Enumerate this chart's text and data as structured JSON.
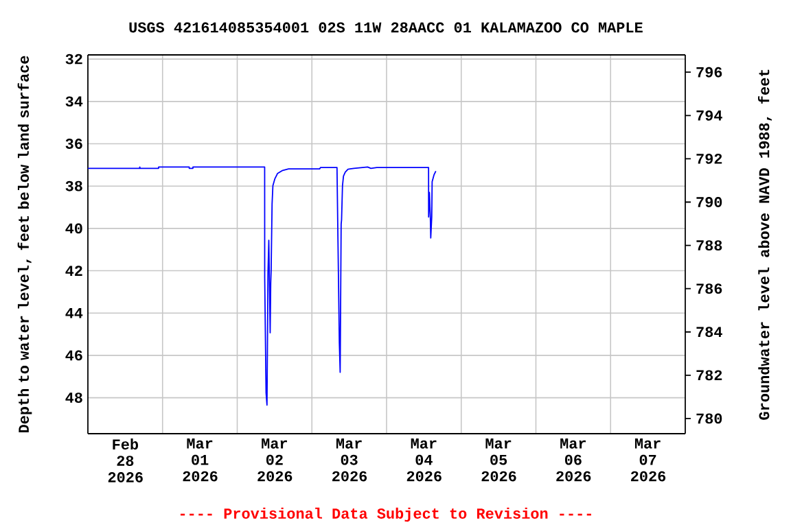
{
  "chart_data": {
    "type": "line",
    "title": "USGS 421614085354001 02S 11W 28AACC 01 KALAMAZOO CO MAPLE",
    "ylabel": "Depth to water level, feet below land surface",
    "y2label": "Groundwater level above NAVD 1988, feet",
    "annotations": [
      "---- Provisional Data Subject to Revision ----"
    ],
    "xlim": [
      "2026-02-28T00:00",
      "2026-03-08T00:00"
    ],
    "xticks": [
      {
        "value": "2026-02-28T12:00",
        "label": "Feb 28 2026"
      },
      {
        "value": "2026-03-01T12:00",
        "label": "Mar 01 2026"
      },
      {
        "value": "2026-03-02T12:00",
        "label": "Mar 02 2026"
      },
      {
        "value": "2026-03-03T12:00",
        "label": "Mar 03 2026"
      },
      {
        "value": "2026-03-04T12:00",
        "label": "Mar 04 2026"
      },
      {
        "value": "2026-03-05T12:00",
        "label": "Mar 05 2026"
      },
      {
        "value": "2026-03-06T12:00",
        "label": "Mar 06 2026"
      },
      {
        "value": "2026-03-07T12:00",
        "label": "Mar 07 2026"
      },
      {
        "value": "2026-03-01T00:00",
        "label": null
      },
      {
        "value": "2026-03-02T00:00",
        "label": null
      },
      {
        "value": "2026-03-03T00:00",
        "label": null
      },
      {
        "value": "2026-03-04T00:00",
        "label": null
      },
      {
        "value": "2026-03-05T00:00",
        "label": null
      },
      {
        "value": "2026-03-06T00:00",
        "label": null
      },
      {
        "value": "2026-03-07T00:00",
        "label": null
      }
    ],
    "ylim": [
      49.7,
      31.8
    ],
    "yticks": [
      32,
      34,
      36,
      38,
      40,
      42,
      44,
      46,
      48
    ],
    "y2lim": [
      779.3,
      796.8
    ],
    "y2ticks": [
      780,
      782,
      784,
      786,
      788,
      790,
      792,
      794,
      796
    ],
    "grid": true,
    "color": "#0000ff",
    "marker": "none",
    "line_style": "solid",
    "x": [
      "2026-02-28T00:00",
      "2026-02-28T16:35",
      "2026-02-28T16:41",
      "2026-02-28T16:47",
      "2026-02-28T22:43",
      "2026-02-28T22:44",
      "2026-03-01T08:34",
      "2026-03-01T08:35",
      "2026-03-01T09:45",
      "2026-03-01T09:46",
      "2026-03-02T08:49",
      "2026-03-02T08:50",
      "2026-03-02T09:16",
      "2026-03-02T09:34",
      "2026-03-02T09:53",
      "2026-03-02T10:09",
      "2026-03-02T10:19",
      "2026-03-02T10:35",
      "2026-03-02T10:46",
      "2026-03-02T10:54",
      "2026-03-02T11:12",
      "2026-03-02T11:28",
      "2026-03-02T12:05",
      "2026-03-02T12:58",
      "2026-03-02T14:26",
      "2026-03-02T16:30",
      "2026-03-03T02:28",
      "2026-03-03T02:47",
      "2026-03-03T08:04",
      "2026-03-03T08:23",
      "2026-03-03T08:49",
      "2026-03-03T09:05",
      "2026-03-03T09:24",
      "2026-03-03T09:32",
      "2026-03-03T09:50",
      "2026-03-03T10:09",
      "2026-03-03T10:43",
      "2026-03-03T11:36",
      "2026-03-03T13:30",
      "2026-03-03T17:55",
      "2026-03-03T18:58",
      "2026-03-03T20:52",
      "2026-03-04T13:30",
      "2026-03-04T13:31",
      "2026-03-04T13:46",
      "2026-03-04T14:04",
      "2026-03-04T14:12",
      "2026-03-04T14:31",
      "2026-03-04T14:39",
      "2026-03-04T15:16",
      "2026-03-04T15:50"
    ],
    "values": [
      37.16,
      37.16,
      37.1,
      37.16,
      37.16,
      37.1,
      37.1,
      37.16,
      37.16,
      37.1,
      37.1,
      42.35,
      47.77,
      48.35,
      42.1,
      40.56,
      42.17,
      44.93,
      42.6,
      41.98,
      38.84,
      37.98,
      37.66,
      37.4,
      37.27,
      37.19,
      37.19,
      37.12,
      37.12,
      40.63,
      45.4,
      46.8,
      39.8,
      39.6,
      37.98,
      37.53,
      37.34,
      37.2,
      37.16,
      37.1,
      37.16,
      37.12,
      37.12,
      39.46,
      38.3,
      39.46,
      40.45,
      39.46,
      37.79,
      37.46,
      37.29
    ]
  }
}
